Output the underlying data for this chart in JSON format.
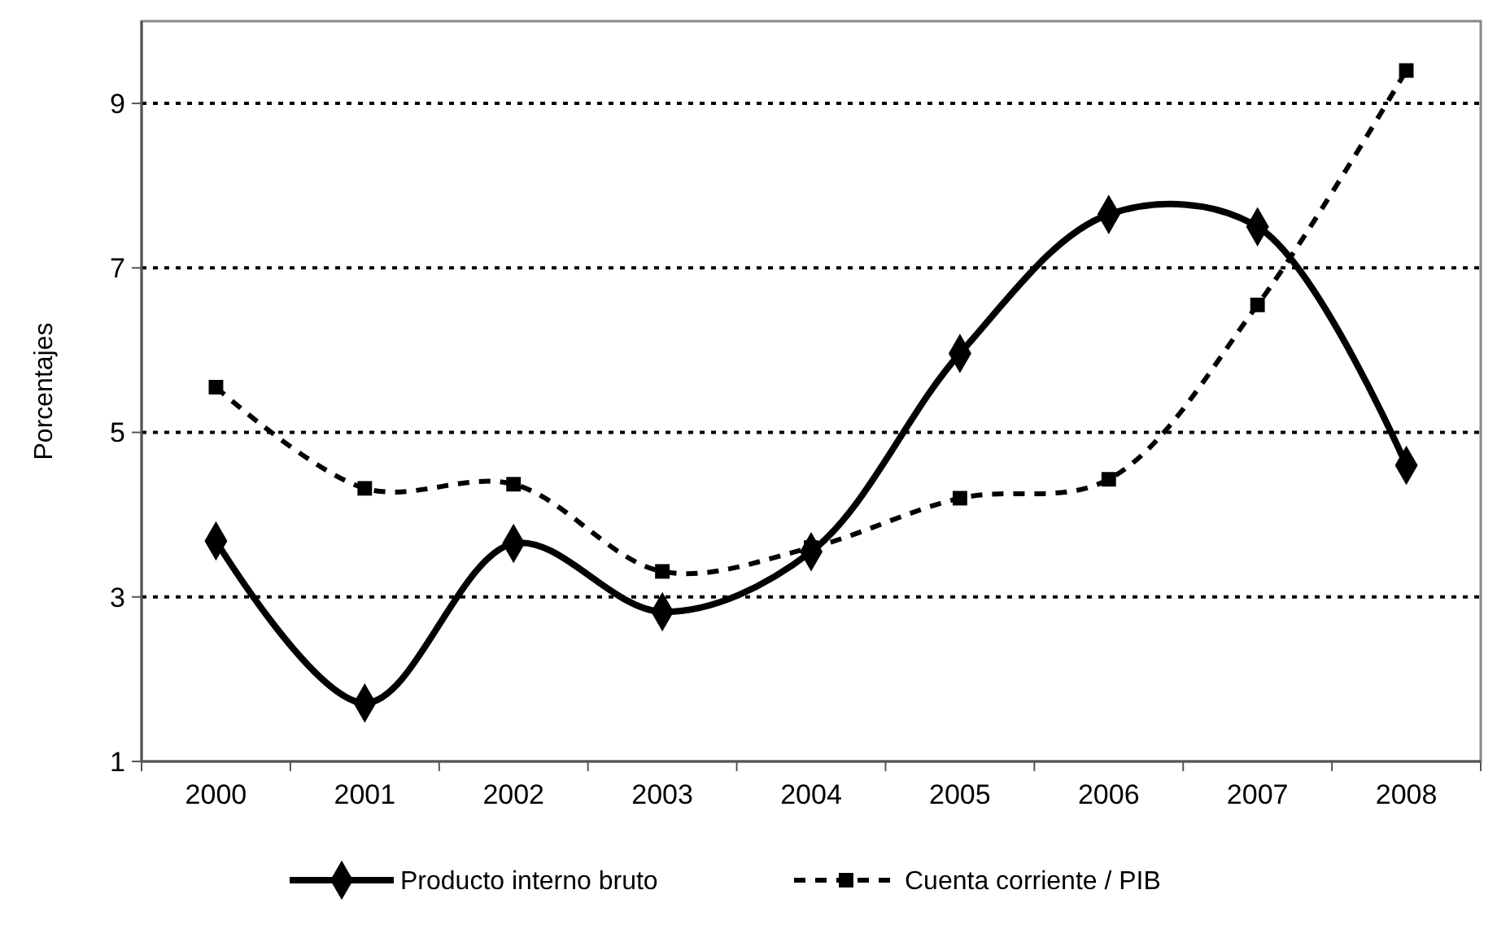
{
  "chart_data": {
    "type": "line",
    "ylabel": "Porcentajes",
    "categories": [
      "2000",
      "2001",
      "2002",
      "2003",
      "2004",
      "2005",
      "2006",
      "2007",
      "2008"
    ],
    "series": [
      {
        "name": "Producto interno bruto",
        "color": "#000000",
        "marker": "diamond",
        "line_style": "solid",
        "values": [
          3.68,
          1.71,
          3.65,
          2.82,
          3.55,
          5.96,
          7.65,
          7.5,
          4.6
        ]
      },
      {
        "name": "Cuenta corriente / PIB",
        "color": "#000000",
        "marker": "square",
        "line_style": "dashed",
        "values": [
          5.55,
          4.32,
          4.37,
          3.31,
          3.6,
          4.2,
          4.43,
          6.55,
          9.4
        ]
      }
    ],
    "ylim": [
      1,
      10
    ],
    "yticks": [
      1,
      3,
      5,
      7,
      9
    ],
    "grid": "y",
    "legend": "bottom"
  }
}
